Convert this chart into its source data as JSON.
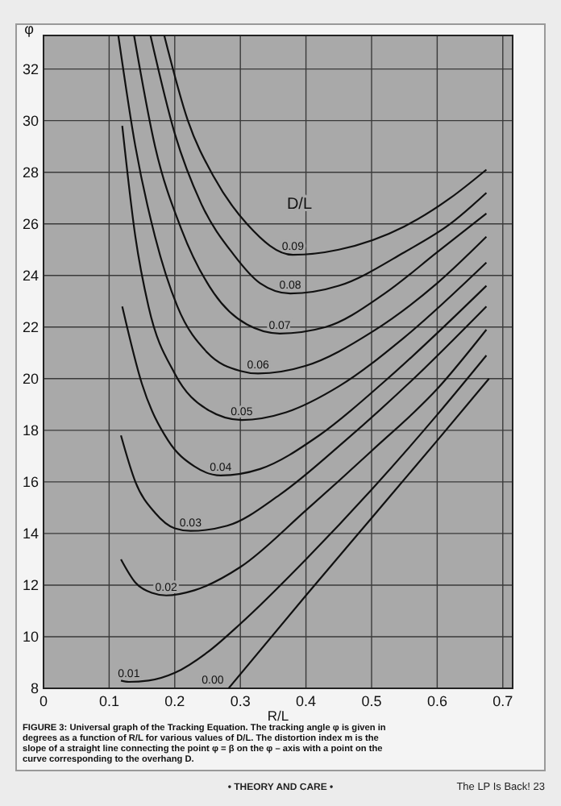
{
  "chart_data": {
    "type": "line",
    "xlabel": "R/L",
    "ylabel": "φ",
    "legend_title": "D/L",
    "xlim": [
      0,
      0.715
    ],
    "ylim": [
      8,
      33.3
    ],
    "xticks": [
      0,
      0.1,
      0.2,
      0.3,
      0.4,
      0.5,
      0.6,
      0.7
    ],
    "yticks": [
      8,
      10,
      12,
      14,
      16,
      18,
      20,
      22,
      24,
      26,
      28,
      30,
      32
    ],
    "grid": true,
    "marker": "none",
    "line_style": "solid",
    "series": [
      {
        "name": "0.09",
        "color": "#111111",
        "x": [
          0.184,
          0.22,
          0.26,
          0.31,
          0.38,
          0.45,
          0.55,
          0.62,
          0.675
        ],
        "values": [
          33.3,
          30,
          27.8,
          26,
          24.8,
          25,
          25.9,
          27,
          28.1
        ]
      },
      {
        "name": "0.08",
        "color": "#111111",
        "x": [
          0.163,
          0.2,
          0.24,
          0.29,
          0.33,
          0.376,
          0.45,
          0.55,
          0.62,
          0.675
        ],
        "values": [
          33.3,
          29.5,
          26.8,
          24.8,
          23.7,
          23.3,
          23.6,
          24.9,
          26,
          27.2
        ]
      },
      {
        "name": "0.07",
        "color": "#111111",
        "x": [
          0.138,
          0.17,
          0.21,
          0.26,
          0.31,
          0.36,
          0.43,
          0.52,
          0.6,
          0.675
        ],
        "values": [
          33.3,
          29,
          25.8,
          23.3,
          22.1,
          21.75,
          22,
          23.3,
          24.9,
          26.4
        ]
      },
      {
        "name": "0.06",
        "color": "#111111",
        "x": [
          0.114,
          0.14,
          0.17,
          0.204,
          0.25,
          0.3,
          0.327,
          0.4,
          0.5,
          0.6,
          0.675
        ],
        "values": [
          33.3,
          29,
          25.5,
          22.8,
          21,
          20.3,
          20.2,
          20.5,
          21.8,
          23.7,
          25.5
        ]
      },
      {
        "name": "0.05",
        "color": "#111111",
        "x": [
          0.12,
          0.14,
          0.16,
          0.2,
          0.25,
          0.302,
          0.37,
          0.45,
          0.55,
          0.675
        ],
        "values": [
          29.8,
          25.5,
          22.8,
          20.2,
          18.8,
          18.4,
          18.7,
          19.7,
          21.6,
          24.5
        ]
      },
      {
        "name": "0.04",
        "color": "#111111",
        "x": [
          0.12,
          0.15,
          0.19,
          0.23,
          0.27,
          0.33,
          0.42,
          0.52,
          0.675
        ],
        "values": [
          22.8,
          19.8,
          17.6,
          16.6,
          16.25,
          16.5,
          17.8,
          19.9,
          23.6
        ]
      },
      {
        "name": "0.03",
        "color": "#111111",
        "x": [
          0.118,
          0.14,
          0.17,
          0.2,
          0.224,
          0.28,
          0.36,
          0.46,
          0.56,
          0.675
        ],
        "values": [
          17.8,
          16,
          14.8,
          14.2,
          14.1,
          14.3,
          15.5,
          17.6,
          19.9,
          22.8
        ]
      },
      {
        "name": "0.02",
        "color": "#111111",
        "x": [
          0.118,
          0.14,
          0.165,
          0.187,
          0.23,
          0.3,
          0.4,
          0.5,
          0.6,
          0.675
        ],
        "values": [
          13,
          12.1,
          11.7,
          11.6,
          11.8,
          12.7,
          14.9,
          17.2,
          19.6,
          21.9
        ]
      },
      {
        "name": "0.01",
        "color": "#111111",
        "x": [
          0.118,
          0.13,
          0.16,
          0.2,
          0.25,
          0.3,
          0.4,
          0.5,
          0.6,
          0.675
        ],
        "values": [
          8.3,
          8.25,
          8.3,
          8.6,
          9.4,
          10.5,
          13,
          15.7,
          18.6,
          20.9
        ]
      },
      {
        "name": "0.00",
        "color": "#111111",
        "x": [
          0.282,
          0.4,
          0.5,
          0.6,
          0.679
        ],
        "values": [
          8,
          11.6,
          14.6,
          17.6,
          20
        ]
      }
    ],
    "annotations": [
      "FIGURE 3: Universal graph of the Tracking Equation. The tracking angle φ is given in degrees as a function of R/L for various values of D/L. The distortion index m is the slope of a straight line connecting the point φ = β on the φ – axis with a point on the curve corresponding to the overhang D.",
      "• THEORY AND CARE •",
      "The LP Is Back! 23"
    ]
  }
}
